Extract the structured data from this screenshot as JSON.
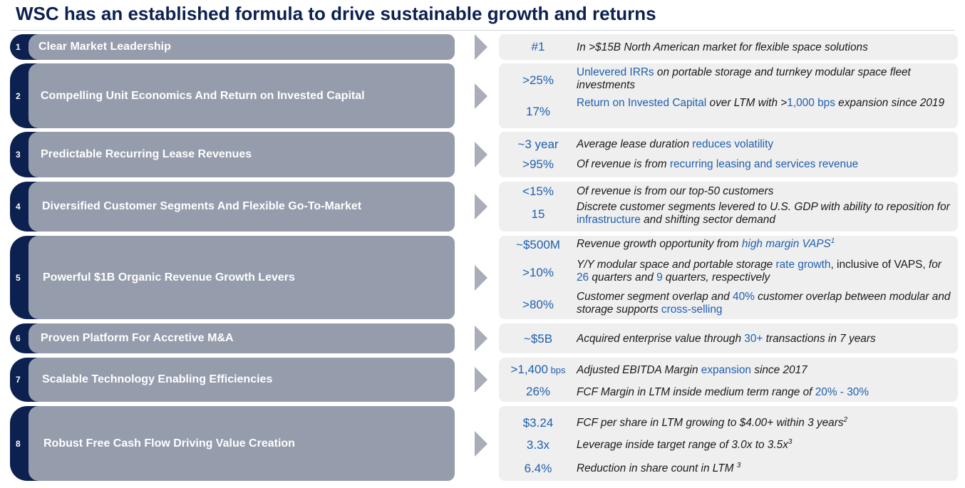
{
  "title": "WSC has an established formula to drive sustainable growth and returns",
  "pillars": [
    {
      "num": "1",
      "label": "Clear Market Leadership"
    },
    {
      "num": "2",
      "label": "Compelling Unit Economics And Return on Invested Capital"
    },
    {
      "num": "3",
      "label": "Predictable Recurring Lease Revenues"
    },
    {
      "num": "4",
      "label": "Diversified Customer Segments And Flexible Go-To-Market"
    },
    {
      "num": "5",
      "label": "Powerful $1B Organic Revenue Growth Levers"
    },
    {
      "num": "6",
      "label": "Proven Platform For Accretive M&A"
    },
    {
      "num": "7",
      "label": "Scalable Technology Enabling Efficiencies"
    },
    {
      "num": "8",
      "label": "Robust Free Cash Flow Driving Value Creation"
    }
  ],
  "metrics": {
    "r1": {
      "m1": "#1",
      "d1": "In >$15B North American market for flexible space solutions"
    },
    "r2": {
      "m1": ">25%",
      "d1_a": "Unlevered IRRs",
      "d1_b": " on portable storage and turnkey modular space fleet investments",
      "m2": "17%",
      "d2_a": "Return on Invested Capital",
      "d2_b": " over LTM with >",
      "d2_c": "1,000 bps",
      "d2_d": " expansion since 2019"
    },
    "r3": {
      "m1": "~3 year",
      "d1_a": "Average lease duration ",
      "d1_b": "reduces volatility",
      "m2": ">95%",
      "d2_a": "Of revenue is from ",
      "d2_b": "recurring leasing and services revenue"
    },
    "r4": {
      "m1": "<15%",
      "d1": "Of revenue is from our top-50 customers",
      "m2": "15",
      "d2_a": "Discrete customer segments levered to U.S. GDP with ability to reposition for ",
      "d2_b": "infrastructure",
      "d2_c": " and shifting sector demand"
    },
    "r5": {
      "m1": "~$500M",
      "d1_a": "Revenue growth opportunity from ",
      "d1_b": "high margin VAPS",
      "d1_sup": "1",
      "m2": ">10%",
      "d2_a": "Y/Y modular space and portable storage ",
      "d2_b": "rate growth",
      "d2_c": ", inclusive of VAPS, ",
      "d2_d": "for ",
      "d2_e": "26",
      "d2_f": " quarters and ",
      "d2_g": "9",
      "d2_h": " quarters, respectively",
      "m3": ">80%",
      "d3_a": "Customer segment overlap and ",
      "d3_b": "40%",
      "d3_c": " customer overlap between modular and storage supports ",
      "d3_d": "cross-selling"
    },
    "r6": {
      "m1": "~$5B",
      "d1_a": "Acquired enterprise value through ",
      "d1_b": "30+",
      "d1_c": " transactions in 7 years"
    },
    "r7": {
      "m1": ">1,400",
      "m1_unit": " bps",
      "d1_a": "Adjusted EBITDA Margin ",
      "d1_b": "expansion",
      "d1_c": " since 2017",
      "m2": "26%",
      "d2_a": "FCF Margin in LTM inside medium term range of ",
      "d2_b": "20% - 30%"
    },
    "r8": {
      "m1": "$3.24",
      "d1": "FCF per share in LTM growing to $4.00+ within 3 years",
      "d1_sup": "2",
      "m2": "3.3x",
      "d2": "Leverage inside target range of 3.0x to 3.5x",
      "d2_sup": "3",
      "m3": "6.4%",
      "d3": "Reduction in share count in LTM ",
      "d3_sup": "3"
    }
  }
}
